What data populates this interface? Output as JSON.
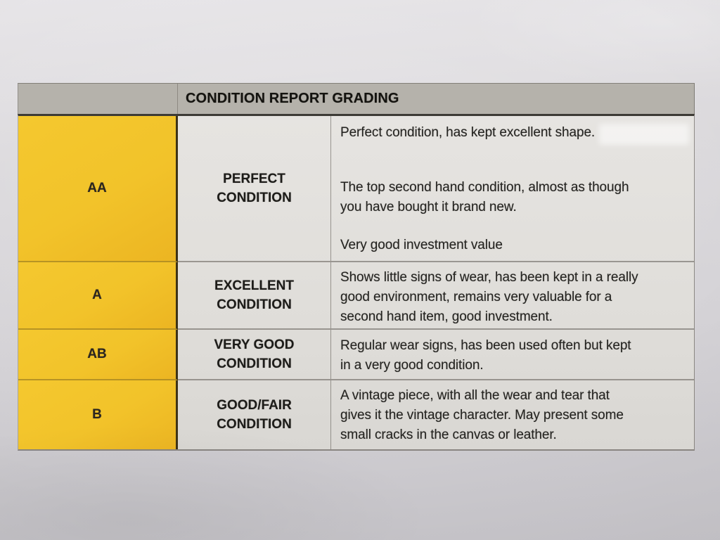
{
  "title": "CONDITION REPORT GRADING",
  "rows": [
    {
      "grade": "AA",
      "label": "PERFECT\nCONDITION",
      "paragraphs": [
        "Perfect condition, has kept excellent shape.",
        "The top second hand condition, almost as though\nyou have bought it brand new.",
        "Very good investment value"
      ]
    },
    {
      "grade": "A",
      "label": "EXCELLENT\nCONDITION",
      "paragraphs": [
        "Shows little signs of wear, has been kept in a really\ngood environment, remains very valuable for a\nsecond hand item, good investment."
      ]
    },
    {
      "grade": "AB",
      "label": "VERY GOOD\nCONDITION",
      "paragraphs": [
        "Regular wear signs, has been used often but kept\nin a very good condition."
      ]
    },
    {
      "grade": "B",
      "label": "GOOD/FAIR\nCONDITION",
      "paragraphs": [
        "A vintage piece, with all the wear and tear that\ngives it the vintage character. May present some\nsmall cracks in the canvas or leather."
      ]
    }
  ],
  "colors": {
    "grade_column": "#f4c82f",
    "header_band": "#b5b2ab",
    "cell_background": "#e2e0dc",
    "paper": "#d8d6d9",
    "ink": "#201f1c"
  }
}
